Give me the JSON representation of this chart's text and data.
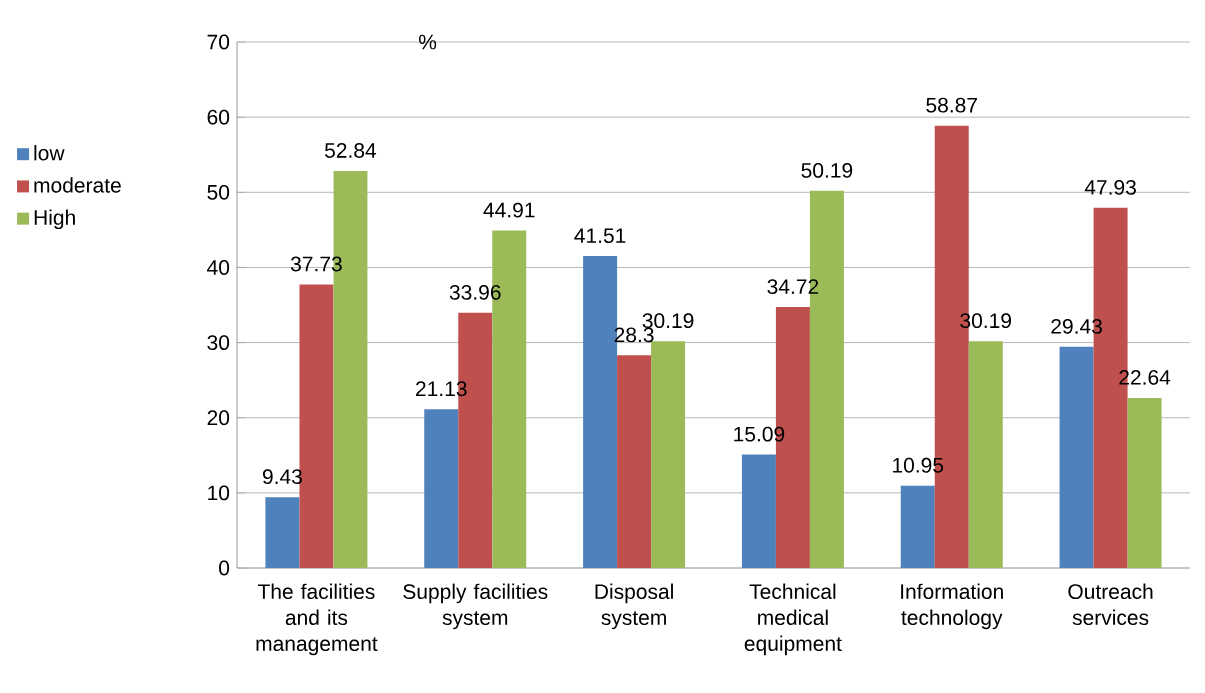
{
  "chart_data": {
    "type": "bar",
    "ylabel": "%",
    "categories": [
      "The facilities and its management",
      "Supply facilities system",
      "Disposal system",
      "Technical medical equipment",
      "Information technology",
      "Outreach services"
    ],
    "series": [
      {
        "name": "low",
        "color": "#4f81bd",
        "values": [
          9.43,
          21.13,
          41.51,
          15.09,
          10.95,
          29.43
        ]
      },
      {
        "name": "moderate",
        "color": "#c0504d",
        "values": [
          37.73,
          33.96,
          28.3,
          34.72,
          58.87,
          47.93
        ]
      },
      {
        "name": "High",
        "color": "#9bbb59",
        "values": [
          52.84,
          44.91,
          30.19,
          50.19,
          30.19,
          22.64
        ]
      }
    ],
    "ylim": [
      0,
      70
    ],
    "yticks": [
      0,
      10,
      20,
      30,
      40,
      50,
      60,
      70
    ],
    "grid": "y",
    "legend": "left",
    "data_labels": true
  }
}
